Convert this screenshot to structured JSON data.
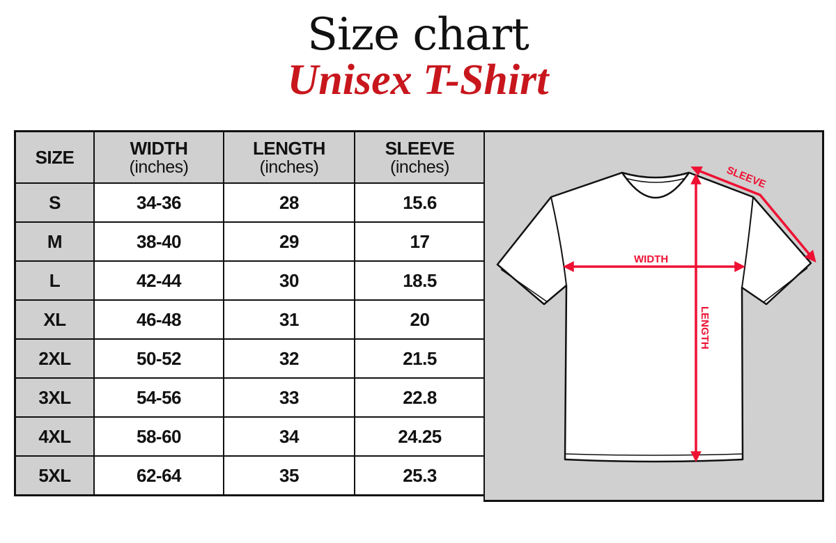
{
  "title": "Size chart",
  "subtitle": "Unisex T-Shirt",
  "colors": {
    "accent": "#c8161d",
    "measure_lines": "#ee1133",
    "header_bg": "#d0d0d0"
  },
  "table": {
    "headers": [
      {
        "label": "SIZE",
        "unit": ""
      },
      {
        "label": "WIDTH",
        "unit": "(inches)"
      },
      {
        "label": "LENGTH",
        "unit": "(inches)"
      },
      {
        "label": "SLEEVE",
        "unit": "(inches)"
      }
    ],
    "rows": [
      [
        "S",
        "34-36",
        "28",
        "15.6"
      ],
      [
        "M",
        "38-40",
        "29",
        "17"
      ],
      [
        "L",
        "42-44",
        "30",
        "18.5"
      ],
      [
        "XL",
        "46-48",
        "31",
        "20"
      ],
      [
        "2XL",
        "50-52",
        "32",
        "21.5"
      ],
      [
        "3XL",
        "54-56",
        "33",
        "22.8"
      ],
      [
        "4XL",
        "58-60",
        "34",
        "24.25"
      ],
      [
        "5XL",
        "62-64",
        "35",
        "25.3"
      ]
    ]
  },
  "diagram": {
    "width_label": "WIDTH",
    "length_label": "LENGTH",
    "sleeve_label": "SLEEVE"
  }
}
